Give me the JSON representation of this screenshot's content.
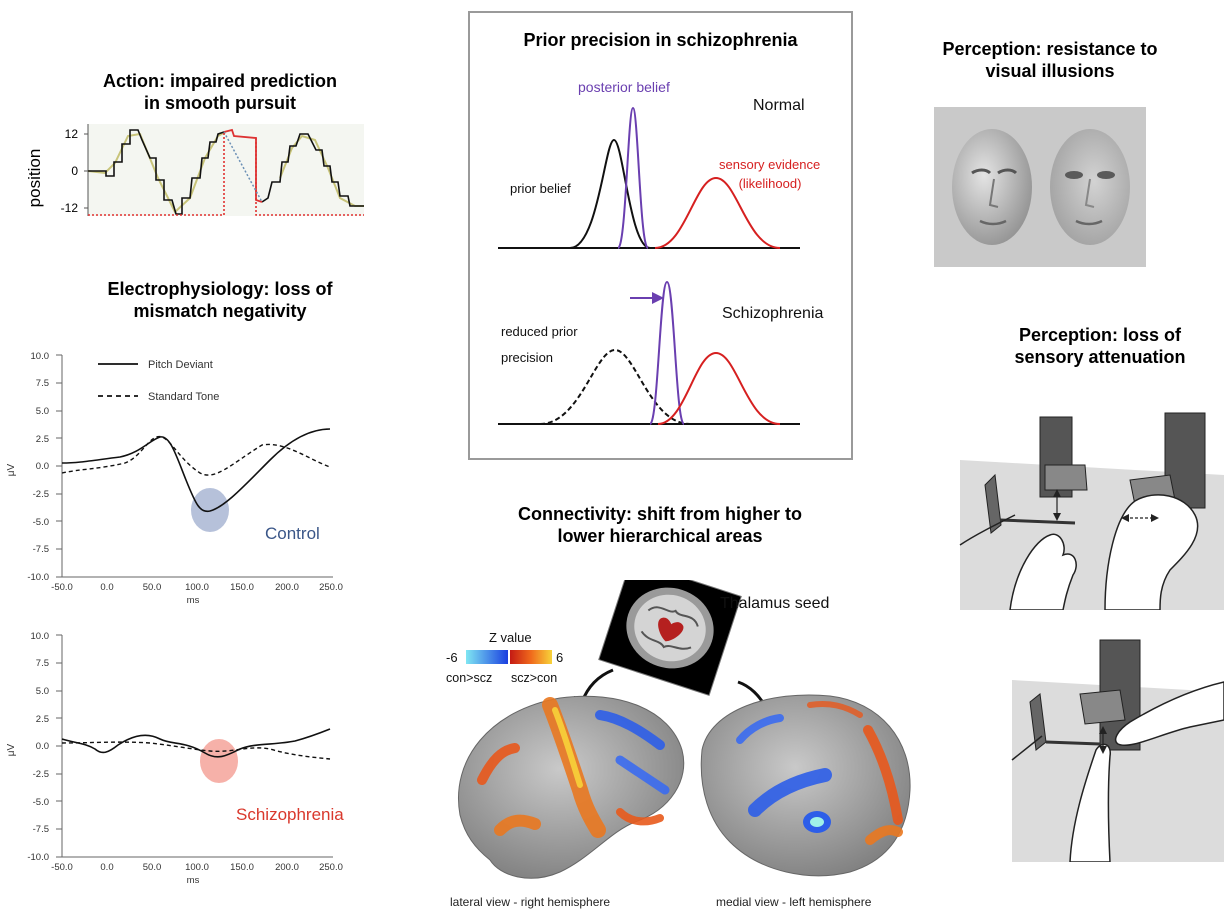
{
  "panels": {
    "smooth_pursuit": {
      "title_line1": "Action: impaired prediction",
      "title_line2": "in smooth pursuit",
      "ylabel": "position",
      "yticks": [
        "12",
        "0",
        "-12"
      ]
    },
    "mismatch": {
      "title_line1": "Electrophysiology: loss of",
      "title_line2": "mismatch negativity",
      "legend": [
        "Pitch Deviant",
        "Standard Tone"
      ],
      "yticks": [
        "10.0",
        "7.5",
        "5.0",
        "2.5",
        "0.0",
        "-2.5",
        "-5.0",
        "-7.5",
        "-10.0"
      ],
      "xticks": [
        "-50.0",
        "0.0",
        "50.0",
        "100.0",
        "150.0",
        "200.0",
        "250.0"
      ],
      "xlabel": "ms",
      "ylabel": "μV",
      "group_control": "Control",
      "group_scz": "Schizophrenia",
      "colors": {
        "control_circle": "#a9b6d3",
        "scz_circle": "#f4a39a",
        "control_label": "#3a5688",
        "scz_label": "#d9382c"
      }
    },
    "prior_precision": {
      "title": "Prior precision in schizophrenia",
      "posterior": "posterior belief",
      "normal": "Normal",
      "sensory_line1": "sensory evidence",
      "sensory_line2": "(likelihood)",
      "prior": "prior belief",
      "reduced_line1": "reduced prior",
      "reduced_line2": "precision",
      "schizophrenia": "Schizophrenia",
      "colors": {
        "posterior": "#6a3fb0",
        "sensory": "#d62020",
        "prior": "#111111",
        "frame": "#9a9a9a"
      }
    },
    "illusions": {
      "title_line1": "Perception: resistance to",
      "title_line2": "visual illusions"
    },
    "attenuation": {
      "title_line1": "Perception: loss of",
      "title_line2": "sensory attenuation"
    },
    "connectivity": {
      "title_line1": "Connectivity: shift from higher to",
      "title_line2": "lower hierarchical areas",
      "seed": "Thalamus seed",
      "zvalue": "Z value",
      "zmin": "-6",
      "zmax": "6",
      "neg_label": "con>scz",
      "pos_label": "scz>con",
      "lateral_caption": "lateral view - right hemisphere",
      "medial_caption": "medial view - left hemisphere"
    }
  }
}
